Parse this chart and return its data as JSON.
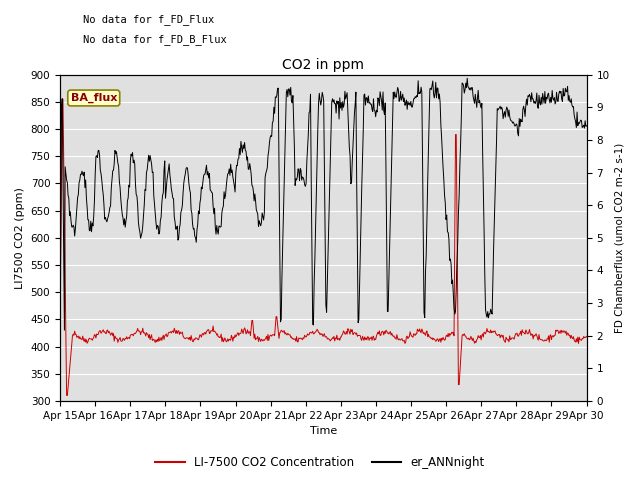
{
  "title": "CO2 in ppm",
  "xlabel": "Time",
  "ylabel_left": "LI7500 CO2 (ppm)",
  "ylabel_right": "FD Chamberflux (umol CO2 m-2 s-1)",
  "ylim_left": [
    300,
    900
  ],
  "ylim_right": [
    0.0,
    10.0
  ],
  "yticks_left": [
    300,
    350,
    400,
    450,
    500,
    550,
    600,
    650,
    700,
    750,
    800,
    850,
    900
  ],
  "yticks_right": [
    0.0,
    1.0,
    2.0,
    3.0,
    4.0,
    5.0,
    6.0,
    7.0,
    8.0,
    9.0,
    10.0
  ],
  "xlim": [
    0,
    15
  ],
  "xtick_labels": [
    "Apr 15",
    "Apr 16",
    "Apr 17",
    "Apr 18",
    "Apr 19",
    "Apr 20",
    "Apr 21",
    "Apr 22",
    "Apr 23",
    "Apr 24",
    "Apr 25",
    "Apr 26",
    "Apr 27",
    "Apr 28",
    "Apr 29",
    "Apr 30"
  ],
  "annotation1": "No data for f_FD_Flux",
  "annotation2": "No data for f_FD_B_Flux",
  "annotation3": "BA_flux",
  "legend_line1": "LI-7500 CO2 Concentration",
  "legend_line2": "er_ANNnight",
  "bg_color": "#e0e0e0",
  "red_color": "#cc0000",
  "black_color": "#000000",
  "fig_width": 6.4,
  "fig_height": 4.8,
  "dpi": 100
}
